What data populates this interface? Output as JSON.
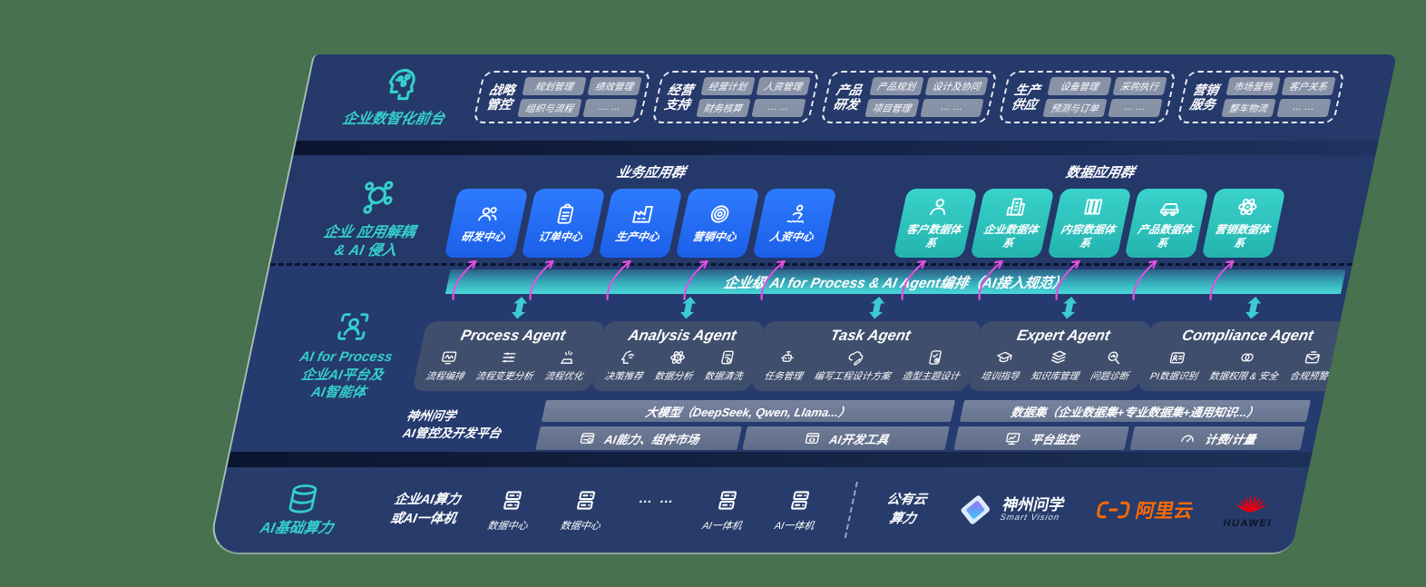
{
  "colors": {
    "accent_teal": "#35d0cb",
    "primary_blue": "#1e6bf2",
    "box_teal": "#2fc9c4",
    "arrow_pink": "#e44fe2",
    "alicloud_orange": "#ff6a00",
    "huawei_red": "#e60012"
  },
  "front_stage": {
    "label": "企业数智化前台",
    "icon": "ai-brain",
    "groups": [
      {
        "title": "战略管控",
        "pills": [
          "规划管理",
          "绩效管理",
          "组织与流程",
          "… …"
        ]
      },
      {
        "title": "经营支持",
        "pills": [
          "经营计划",
          "人资管理",
          "财务核算",
          "… …"
        ]
      },
      {
        "title": "产品研发",
        "pills": [
          "产品规划",
          "设计及协同",
          "项目管理",
          "… …"
        ]
      },
      {
        "title": "生产供应",
        "pills": [
          "设备管理",
          "采购执行",
          "预测与订单",
          "… …"
        ]
      },
      {
        "title": "营销服务",
        "pills": [
          "市场营销",
          "客户关系",
          "整车物流",
          "… …"
        ]
      }
    ]
  },
  "app_layer": {
    "icon": "molecule",
    "label_lines": [
      "企业 应用解耦",
      "& AI 侵入"
    ],
    "business_group": {
      "header": "业务应用群",
      "boxes": [
        {
          "label": "研发中心",
          "icon": "users"
        },
        {
          "label": "订单中心",
          "icon": "clipboard"
        },
        {
          "label": "生产中心",
          "icon": "factory"
        },
        {
          "label": "营销中心",
          "icon": "target"
        },
        {
          "label": "人资中心",
          "icon": "person-wave"
        }
      ]
    },
    "data_group": {
      "header": "数据应用群",
      "boxes": [
        {
          "label": "客户数据体系",
          "icon": "person"
        },
        {
          "label": "企业数据体系",
          "icon": "building"
        },
        {
          "label": "内容数据体系",
          "icon": "columns"
        },
        {
          "label": "产品数据体系",
          "icon": "car"
        },
        {
          "label": "营销数据体系",
          "icon": "atom"
        }
      ]
    }
  },
  "ai_layer": {
    "icon": "scan-person",
    "label_lines": [
      "AI for Process",
      "企业AI平台及",
      "AI智能体"
    ],
    "bus_bar": "企业级 AI for Process & AI Agent编排（AI接入规范）",
    "agents": [
      {
        "title": "Process Agent",
        "items": [
          {
            "label": "流程编排",
            "icon": "monitor-wave"
          },
          {
            "label": "流程变更分析",
            "icon": "sliders"
          },
          {
            "label": "流程优化",
            "icon": "spark-tray"
          }
        ]
      },
      {
        "title": "Analysis Agent",
        "items": [
          {
            "label": "决策推荐",
            "icon": "head-chat"
          },
          {
            "label": "数据分析",
            "icon": "atom"
          },
          {
            "label": "数据清洗",
            "icon": "doc-gear"
          }
        ]
      },
      {
        "title": "Task Agent",
        "items": [
          {
            "label": "任务管理",
            "icon": "robot"
          },
          {
            "label": "编写工程设计方案",
            "icon": "cloud-pen"
          },
          {
            "label": "造型主题设计",
            "icon": "tablet-check"
          }
        ]
      },
      {
        "title": "Expert Agent",
        "items": [
          {
            "label": "培训指导",
            "icon": "grad-cap"
          },
          {
            "label": "知识库管理",
            "icon": "layers"
          },
          {
            "label": "问题诊断",
            "icon": "diagnose"
          }
        ]
      },
      {
        "title": "Compliance Agent",
        "items": [
          {
            "label": "PI数据识别",
            "icon": "id-card"
          },
          {
            "label": "数据权限 & 安全",
            "icon": "rings"
          },
          {
            "label": "合规预警",
            "icon": "mail-alert"
          }
        ]
      }
    ],
    "platform": {
      "label_lines": [
        "神州问学",
        "AI管控及开发平台"
      ],
      "model_bar": "大模型（DeepSeek, Qwen, Llama...）",
      "model_tools": [
        {
          "label": "AI能力、组件市场",
          "icon": "window-gear"
        },
        {
          "label": "AI开发工具",
          "icon": "window-code"
        }
      ],
      "dataset_bar": "数据集（企业数据集+专业数据集+通用知识...）",
      "dataset_tools": [
        {
          "label": "平台监控",
          "icon": "monitor-chart"
        },
        {
          "label": "计费/计量",
          "icon": "gauge"
        }
      ]
    }
  },
  "infra_layer": {
    "icon": "database",
    "label": "AI基础算力",
    "compute_label_lines": [
      "企业AI算力",
      "或AI一体机"
    ],
    "nodes": [
      {
        "label": "数据中心",
        "icon": "server"
      },
      {
        "label": "数据中心",
        "icon": "server"
      },
      {
        "label": "AI一体机",
        "icon": "server"
      },
      {
        "label": "AI一体机",
        "icon": "server"
      }
    ],
    "ellipsis": "… …",
    "cloud_label_lines": [
      "公有云",
      "算力"
    ],
    "partners": {
      "smart_vision": {
        "name": "神州问学",
        "sub": "Smart Vision"
      },
      "alicloud": {
        "name": "阿里云"
      },
      "huawei": {
        "name": "HUAWEI"
      }
    }
  }
}
